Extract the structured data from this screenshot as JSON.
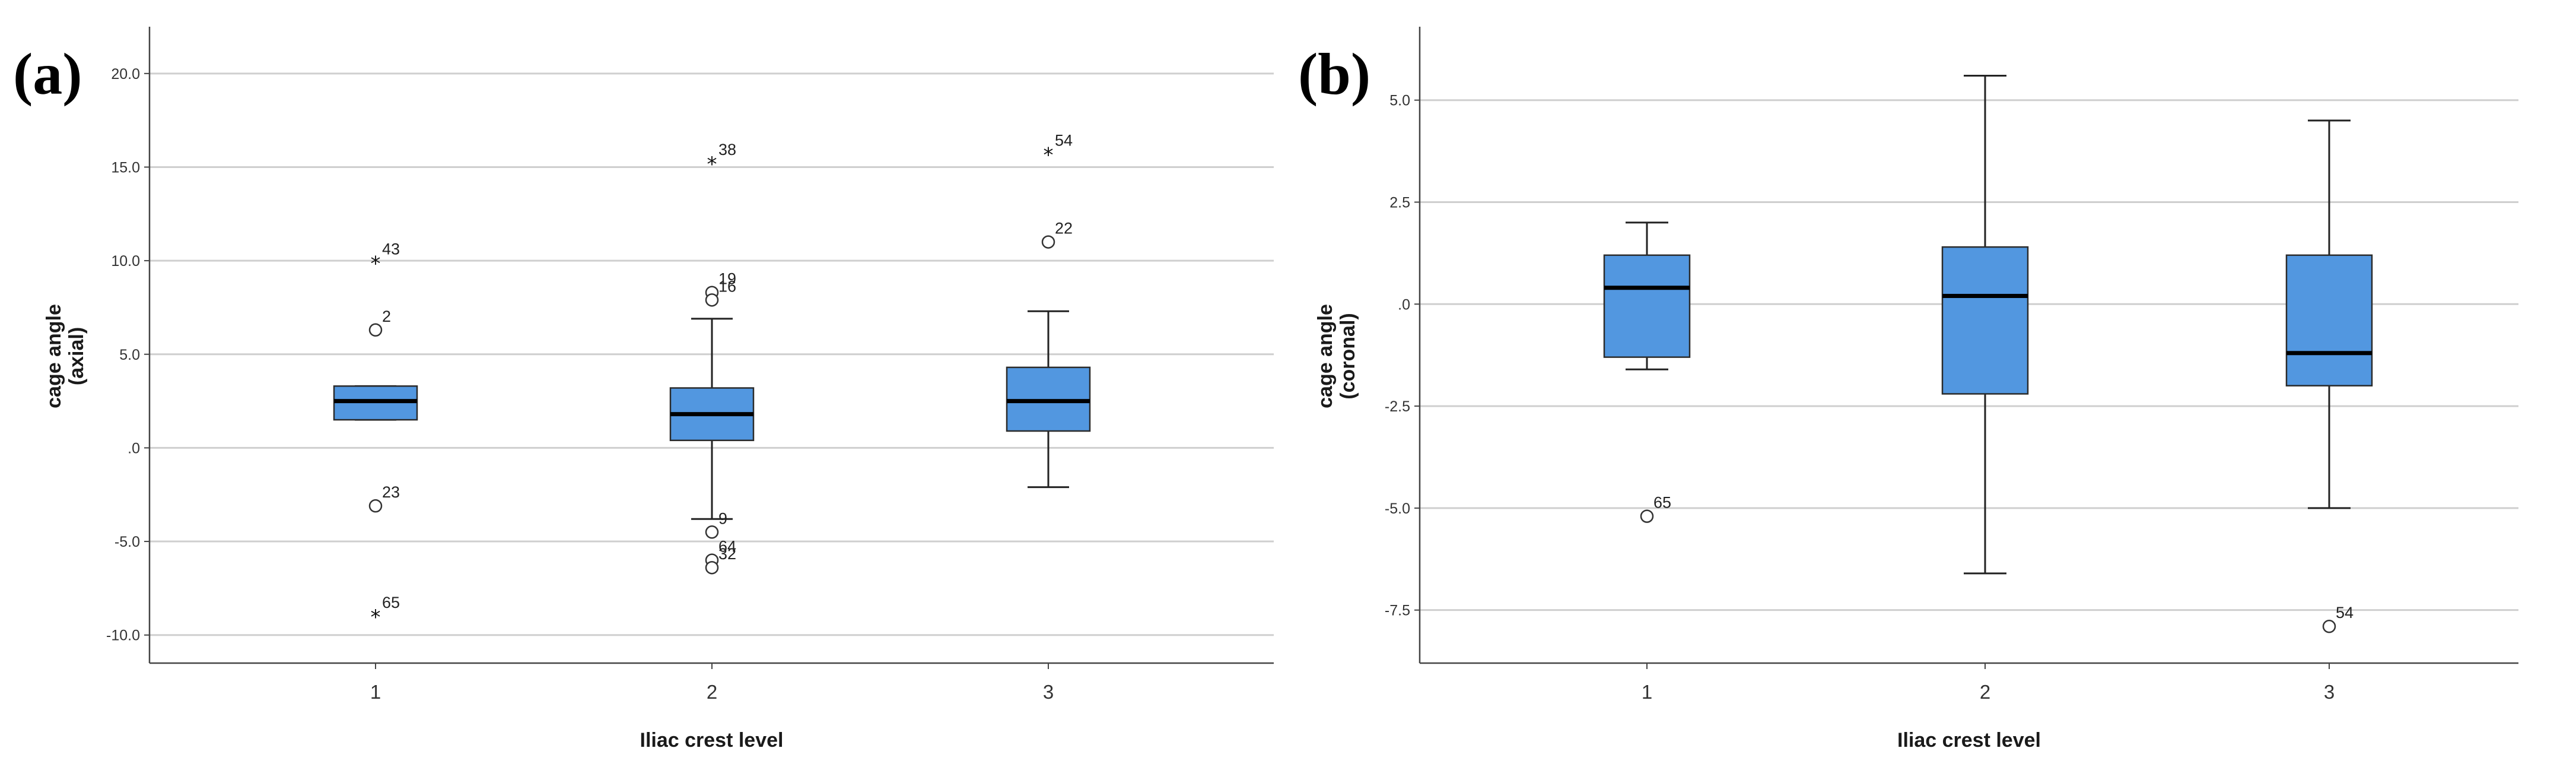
{
  "chart_data": [
    {
      "type": "boxplot",
      "panel_label": "(a)",
      "ylabel_line1": "cage angle",
      "ylabel_line2": "(axial)",
      "xlabel": "Iliac crest level",
      "categories": [
        "1",
        "2",
        "3"
      ],
      "ylim": [
        -11.5,
        22.5
      ],
      "yticks": [
        20,
        15,
        10,
        5,
        0,
        -5,
        -10
      ],
      "ytick_labels": [
        "20.0",
        "15.0",
        "10.0",
        "5.0",
        ".0",
        "-5.0",
        "-10.0"
      ],
      "grid": true,
      "box_color": "#5297E0",
      "boxes": [
        {
          "category": "1",
          "whisker_low": 1.5,
          "q1": 1.5,
          "median": 2.5,
          "q3": 3.3,
          "whisker_high": 3.3
        },
        {
          "category": "2",
          "whisker_low": -3.8,
          "q1": 0.4,
          "median": 1.8,
          "q3": 3.2,
          "whisker_high": 6.9
        },
        {
          "category": "3",
          "whisker_low": -2.1,
          "q1": 0.9,
          "median": 2.5,
          "q3": 4.3,
          "whisker_high": 7.3
        }
      ],
      "outliers": [
        {
          "category": "1",
          "value": 9.9,
          "label": "43",
          "marker": "star"
        },
        {
          "category": "1",
          "value": 6.3,
          "label": "2",
          "marker": "circle"
        },
        {
          "category": "1",
          "value": -3.1,
          "label": "23",
          "marker": "circle"
        },
        {
          "category": "1",
          "value": -9.0,
          "label": "65",
          "marker": "star"
        },
        {
          "category": "2",
          "value": 15.2,
          "label": "38",
          "marker": "star"
        },
        {
          "category": "2",
          "value": 8.3,
          "label": "19",
          "marker": "circle"
        },
        {
          "category": "2",
          "value": 7.9,
          "label": "16",
          "marker": "circle"
        },
        {
          "category": "2",
          "value": -4.5,
          "label": "9",
          "marker": "circle"
        },
        {
          "category": "2",
          "value": -6.0,
          "label": "64",
          "marker": "circle"
        },
        {
          "category": "2",
          "value": -6.4,
          "label": "32",
          "marker": "circle"
        },
        {
          "category": "3",
          "value": 15.7,
          "label": "54",
          "marker": "star"
        },
        {
          "category": "3",
          "value": 11.0,
          "label": "22",
          "marker": "circle"
        }
      ]
    },
    {
      "type": "boxplot",
      "panel_label": "(b)",
      "ylabel_line1": "cage angle",
      "ylabel_line2": "(coronal)",
      "xlabel": "Iliac crest level",
      "categories": [
        "1",
        "2",
        "3"
      ],
      "ylim": [
        -8.8,
        6.8
      ],
      "yticks": [
        5,
        2.5,
        0,
        -2.5,
        -5,
        -7.5
      ],
      "ytick_labels": [
        "5.0",
        "2.5",
        ".0",
        "-2.5",
        "-5.0",
        "-7.5"
      ],
      "grid": true,
      "box_color": "#5297E0",
      "boxes": [
        {
          "category": "1",
          "whisker_low": -1.6,
          "q1": -1.3,
          "median": 0.4,
          "q3": 1.2,
          "whisker_high": 2.0
        },
        {
          "category": "2",
          "whisker_low": -6.6,
          "q1": -2.2,
          "median": 0.2,
          "q3": 1.4,
          "whisker_high": 5.6
        },
        {
          "category": "3",
          "whisker_low": -5.0,
          "q1": -2.0,
          "median": -1.2,
          "q3": 1.2,
          "whisker_high": 4.5
        }
      ],
      "outliers": [
        {
          "category": "1",
          "value": -5.2,
          "label": "65",
          "marker": "circle"
        },
        {
          "category": "3",
          "value": -7.9,
          "label": "54",
          "marker": "circle"
        }
      ]
    }
  ]
}
